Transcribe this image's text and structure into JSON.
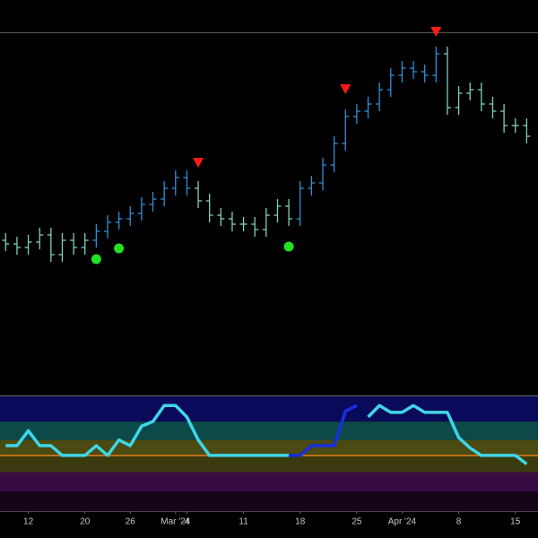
{
  "chart_data": [
    {
      "type": "ohlc",
      "x": [
        -2,
        -1,
        0,
        1,
        2,
        3,
        4,
        5,
        6,
        7,
        8,
        9,
        10,
        11,
        12,
        13,
        14,
        15,
        16,
        17,
        18,
        19,
        20,
        21,
        22,
        23,
        24,
        25,
        26,
        27,
        28,
        29,
        30,
        31,
        32,
        33,
        34,
        35,
        36,
        37,
        38,
        39,
        40,
        41,
        42,
        43,
        44
      ],
      "open": [
        43,
        42,
        41,
        42.5,
        44.5,
        39,
        43,
        41,
        43,
        45.5,
        48,
        49,
        50.5,
        53,
        54.5,
        57.5,
        60.5,
        57.5,
        54,
        50,
        49,
        47.5,
        47.5,
        46,
        50,
        52.5,
        49,
        57.5,
        59,
        64,
        70,
        77.5,
        79,
        81,
        85,
        89,
        91,
        90,
        89,
        95,
        80,
        84,
        85,
        81,
        79,
        75,
        75
      ],
      "high": [
        45,
        44,
        44.5,
        46.5,
        46.5,
        45,
        45,
        45,
        47.5,
        50,
        51,
        52.5,
        55,
        56.5,
        59.5,
        62.5,
        62.5,
        59.5,
        56,
        52,
        51,
        49.5,
        49.5,
        52,
        54.5,
        54.5,
        59.5,
        61,
        66,
        72,
        79.5,
        81,
        83,
        87,
        91,
        93,
        93,
        92,
        97,
        97,
        86,
        87,
        87,
        83,
        81,
        77,
        77
      ],
      "low": [
        40,
        39,
        39,
        40.5,
        37,
        37,
        39,
        39,
        41,
        43.5,
        46,
        47,
        48.5,
        51,
        52.5,
        55.5,
        55.5,
        52,
        48,
        47,
        45.5,
        45.5,
        44,
        44,
        48,
        47,
        47,
        55.5,
        57,
        62,
        68,
        75.5,
        77,
        79,
        83,
        87,
        88,
        87,
        87,
        78,
        78,
        82,
        79,
        77,
        73,
        73,
        70
      ],
      "close": [
        42,
        41,
        42.5,
        44.5,
        39,
        43,
        41,
        43,
        45.5,
        48,
        49,
        50.5,
        53,
        54.5,
        57.5,
        60.5,
        57.5,
        54,
        50,
        49,
        47.5,
        47.5,
        46,
        50,
        52.5,
        49,
        57.5,
        59,
        64,
        70,
        77.5,
        79,
        81,
        85,
        89,
        91,
        90,
        89,
        95,
        80,
        84,
        85,
        81,
        79,
        75,
        75,
        72
      ],
      "bar_colors": [
        "#7fd1b9",
        "#7fd1b9",
        "#7fd1b9",
        "#7fd1b9",
        "#7fd1b9",
        "#7fd1b9",
        "#7fd1b9",
        "#7fd1b9",
        "#2e90d8",
        "#2e90d8",
        "#2e90d8",
        "#2e90d8",
        "#2e90d8",
        "#2e90d8",
        "#2e90d8",
        "#2e90d8",
        "#2e90d8",
        "#7fd1b9",
        "#7fd1b9",
        "#7fd1b9",
        "#7fd1b9",
        "#7fd1b9",
        "#7fd1b9",
        "#7fd1b9",
        "#7fd1b9",
        "#7fd1b9",
        "#2e90d8",
        "#2e90d8",
        "#2e90d8",
        "#2e90d8",
        "#2e90d8",
        "#2e90d8",
        "#2e90d8",
        "#2e90d8",
        "#2e90d8",
        "#2e90d8",
        "#2e90d8",
        "#2e90d8",
        "#2e90d8",
        "#7fd1b9",
        "#7fd1b9",
        "#7fd1b9",
        "#7fd1b9",
        "#7fd1b9",
        "#7fd1b9",
        "#7fd1b9",
        "#7fd1b9"
      ],
      "sell_signals": {
        "x": [
          15,
          28,
          36
        ],
        "values": [
          64.5,
          85,
          101
        ],
        "color": "#ff1a1a"
      },
      "buy_signals": {
        "x": [
          6,
          8,
          23
        ],
        "values": [
          37.75,
          40.75,
          41.25
        ],
        "color": "#22e022"
      },
      "xlim": [
        -2.5,
        45
      ],
      "ylim": [
        0,
        101
      ]
    },
    {
      "type": "line",
      "x": [
        -2,
        -1,
        0,
        1,
        2,
        3,
        4,
        5,
        6,
        7,
        8,
        9,
        10,
        11,
        12,
        13,
        14,
        15,
        16,
        17,
        18,
        19,
        20,
        21,
        22,
        23,
        24,
        25,
        26,
        27,
        28,
        29,
        30,
        31,
        32,
        33,
        34,
        35,
        36,
        37,
        38,
        39,
        40,
        41,
        42,
        43,
        44
      ],
      "series": [
        {
          "color": "#3ed6e6",
          "values": [
            57,
            57,
            70,
            57,
            57,
            48.5,
            48.5,
            48.5,
            57,
            48.5,
            62,
            57,
            74,
            78,
            92,
            92,
            82,
            62,
            48.5,
            48.5,
            48.5,
            48.5,
            48.5,
            48.5,
            48.5,
            48.5,
            null,
            null,
            null,
            null,
            null,
            null,
            82,
            92,
            86,
            86,
            92,
            86,
            86,
            86,
            64,
            55,
            48.5,
            48.5,
            48.5,
            48.5,
            41
          ]
        },
        {
          "color": "#1a2ee0",
          "values": [
            null,
            null,
            null,
            null,
            null,
            null,
            null,
            null,
            null,
            null,
            null,
            null,
            null,
            null,
            null,
            null,
            null,
            null,
            null,
            null,
            null,
            null,
            null,
            null,
            null,
            48.5,
            48.5,
            57,
            57,
            57,
            87,
            92,
            null,
            null,
            null,
            null,
            null,
            null,
            null,
            null,
            null,
            null,
            null,
            null,
            null,
            null,
            null
          ]
        }
      ],
      "zones": [
        {
          "from": 78,
          "to": 100,
          "color": "#0a0a5a"
        },
        {
          "from": 62,
          "to": 78,
          "color": "#0c4a4a"
        },
        {
          "from": 47,
          "to": 62,
          "color": "#4a4a12"
        },
        {
          "from": 34,
          "to": 47,
          "color": "#3a3a0e"
        },
        {
          "from": 17,
          "to": 34,
          "color": "#3a0a42"
        },
        {
          "from": 0,
          "to": 17,
          "color": "#160418"
        }
      ],
      "reference_line": {
        "value": 48.4,
        "color": "#e07a20"
      },
      "xlim": [
        -2.5,
        45
      ],
      "ylim": [
        0,
        100
      ],
      "xticks": [
        {
          "value": 0,
          "label": "12"
        },
        {
          "value": 5,
          "label": "20"
        },
        {
          "value": 9,
          "label": "26"
        },
        {
          "value": 13,
          "label": "Mar '24"
        },
        {
          "value": 14,
          "label": "4"
        },
        {
          "value": 19,
          "label": "11"
        },
        {
          "value": 24,
          "label": "18"
        },
        {
          "value": 29,
          "label": "25"
        },
        {
          "value": 33,
          "label": "Apr '24"
        },
        {
          "value": 38,
          "label": "8"
        },
        {
          "value": 43,
          "label": "15"
        }
      ]
    }
  ]
}
